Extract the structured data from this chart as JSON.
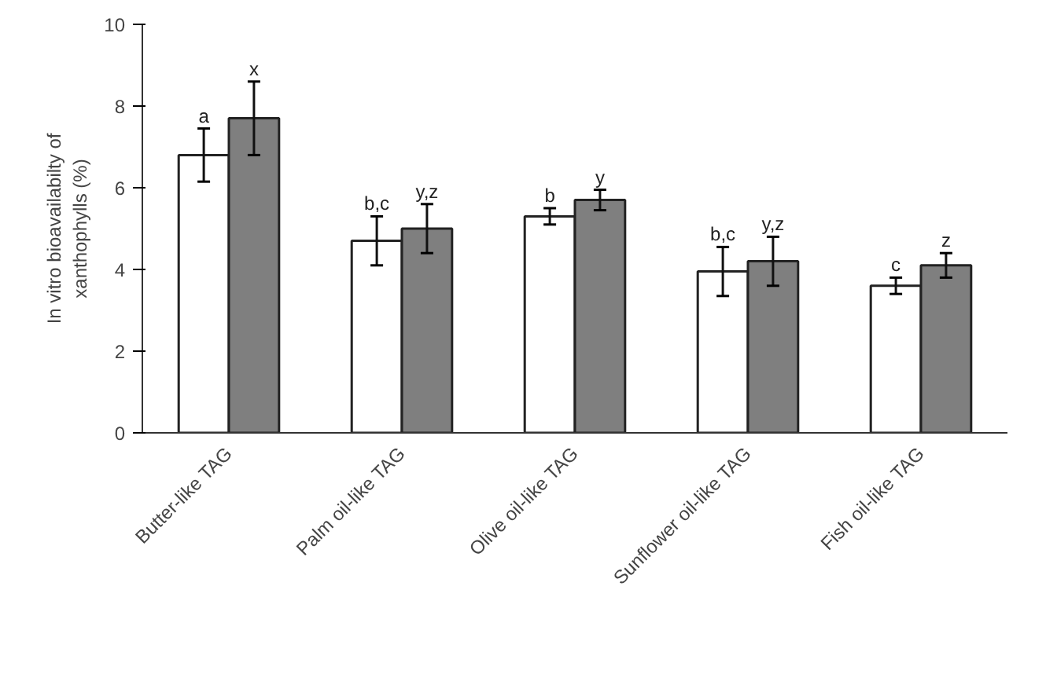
{
  "chart_data": {
    "type": "bar",
    "ylabel": "In vitro bioavailabilty of\nxanthophylls (%)",
    "categories": [
      "Butter-like TAG",
      "Palm oil-like TAG",
      "Olive oil-like TAG",
      "Sunflower oil-like TAG",
      "Fish oil-like TAG"
    ],
    "series": [
      {
        "color": "#ffffff",
        "values": [
          6.8,
          4.7,
          5.3,
          3.95,
          3.6
        ],
        "errors": [
          0.65,
          0.6,
          0.2,
          0.6,
          0.2
        ],
        "value_labels": [
          "a",
          "b,c",
          "b",
          "b,c",
          "c"
        ]
      },
      {
        "color": "#7f7f7f",
        "values": [
          7.7,
          5.0,
          5.7,
          4.2,
          4.1
        ],
        "errors": [
          0.9,
          0.6,
          0.25,
          0.6,
          0.3
        ],
        "value_labels": [
          "x",
          "y,z",
          "y",
          "y,z",
          "z"
        ]
      }
    ],
    "ylim": [
      0,
      10
    ],
    "yticks": [
      0,
      2,
      4,
      6,
      8,
      10
    ],
    "grid": false
  }
}
